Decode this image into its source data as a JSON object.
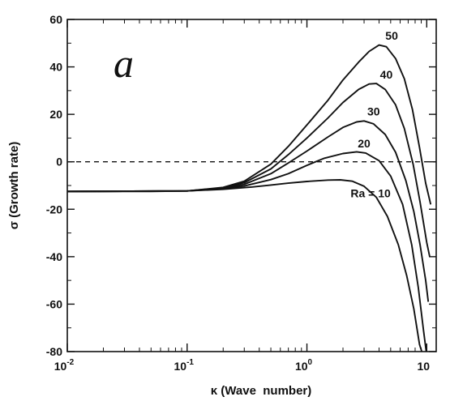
{
  "chart_data": {
    "type": "line",
    "panel_label": "a",
    "xlabel": "κ (Wave  number)",
    "ylabel": "σ (Growth rate)",
    "xscale": "log",
    "xlim": [
      0.01,
      12
    ],
    "ylim": [
      -80,
      60
    ],
    "x_ticks": [
      {
        "value": 0.01,
        "base": "10",
        "exp": "-2"
      },
      {
        "value": 0.1,
        "base": "10",
        "exp": "-1"
      },
      {
        "value": 1,
        "base": "10",
        "exp": "0"
      },
      {
        "value": 10,
        "base": "10",
        "exp": ""
      }
    ],
    "y_ticks": [
      60,
      40,
      20,
      0,
      -20,
      -40,
      -60,
      -80
    ],
    "reference_line": {
      "y": 0,
      "style": "dashed"
    },
    "series": [
      {
        "name": "Ra = 10",
        "points": [
          [
            0.01,
            -12.5
          ],
          [
            0.05,
            -12.5
          ],
          [
            0.1,
            -12.3
          ],
          [
            0.2,
            -11.6
          ],
          [
            0.35,
            -10.6
          ],
          [
            0.5,
            -9.8
          ],
          [
            0.7,
            -9.0
          ],
          [
            1.0,
            -8.3
          ],
          [
            1.5,
            -7.7
          ],
          [
            1.9,
            -7.6
          ],
          [
            2.4,
            -8.2
          ],
          [
            3.0,
            -10.3
          ],
          [
            3.8,
            -15
          ],
          [
            4.7,
            -23
          ],
          [
            5.8,
            -35
          ],
          [
            6.8,
            -48
          ],
          [
            7.8,
            -62
          ],
          [
            8.7,
            -77
          ],
          [
            9.1,
            -83
          ]
        ]
      },
      {
        "name": "20",
        "points": [
          [
            0.01,
            -12.5
          ],
          [
            0.1,
            -12.3
          ],
          [
            0.2,
            -11.4
          ],
          [
            0.3,
            -10.2
          ],
          [
            0.5,
            -7.5
          ],
          [
            0.7,
            -5
          ],
          [
            1.0,
            -1.5
          ],
          [
            1.4,
            1.5
          ],
          [
            2.0,
            3.5
          ],
          [
            2.6,
            4.2
          ],
          [
            3.1,
            3.7
          ],
          [
            4.0,
            0.5
          ],
          [
            5.0,
            -6
          ],
          [
            6.3,
            -18
          ],
          [
            7.5,
            -35
          ],
          [
            8.5,
            -53
          ],
          [
            9.4,
            -71
          ],
          [
            9.9,
            -82
          ]
        ]
      },
      {
        "name": "30",
        "points": [
          [
            0.01,
            -12.5
          ],
          [
            0.1,
            -12.3
          ],
          [
            0.2,
            -11.2
          ],
          [
            0.3,
            -9.5
          ],
          [
            0.5,
            -5
          ],
          [
            0.7,
            -0.5
          ],
          [
            1.0,
            4.5
          ],
          [
            1.5,
            10.5
          ],
          [
            2.0,
            14.5
          ],
          [
            2.6,
            16.8
          ],
          [
            3.0,
            17.2
          ],
          [
            3.6,
            16
          ],
          [
            4.5,
            11.5
          ],
          [
            5.5,
            4
          ],
          [
            6.7,
            -8
          ],
          [
            7.8,
            -21
          ],
          [
            8.8,
            -35
          ],
          [
            9.8,
            -50
          ],
          [
            10.3,
            -59
          ]
        ]
      },
      {
        "name": "40",
        "points": [
          [
            0.01,
            -12.5
          ],
          [
            0.1,
            -12.3
          ],
          [
            0.2,
            -11
          ],
          [
            0.3,
            -8.8
          ],
          [
            0.5,
            -3
          ],
          [
            0.7,
            3
          ],
          [
            1.0,
            10
          ],
          [
            1.5,
            18.5
          ],
          [
            2.0,
            25
          ],
          [
            2.7,
            30.5
          ],
          [
            3.3,
            32.8
          ],
          [
            3.8,
            33
          ],
          [
            4.5,
            30.5
          ],
          [
            5.5,
            24
          ],
          [
            6.5,
            14
          ],
          [
            7.7,
            -1
          ],
          [
            8.8,
            -17
          ],
          [
            10.0,
            -34
          ],
          [
            10.6,
            -40
          ]
        ]
      },
      {
        "name": "50",
        "points": [
          [
            0.01,
            -12.5
          ],
          [
            0.1,
            -12.3
          ],
          [
            0.2,
            -10.8
          ],
          [
            0.3,
            -8.2
          ],
          [
            0.5,
            -1
          ],
          [
            0.7,
            6.5
          ],
          [
            1.0,
            15.5
          ],
          [
            1.5,
            26
          ],
          [
            2.0,
            34.5
          ],
          [
            2.7,
            42
          ],
          [
            3.3,
            46.5
          ],
          [
            4.0,
            49.2
          ],
          [
            4.6,
            48.5
          ],
          [
            5.5,
            43.5
          ],
          [
            6.5,
            35
          ],
          [
            7.6,
            22
          ],
          [
            8.7,
            6
          ],
          [
            9.8,
            -9
          ],
          [
            10.8,
            -18
          ]
        ]
      }
    ],
    "curve_labels": [
      {
        "text": "50",
        "x": 5.1,
        "y": 51.5
      },
      {
        "text": "40",
        "x": 4.6,
        "y": 35
      },
      {
        "text": "30",
        "x": 3.6,
        "y": 19.5
      },
      {
        "text": "20",
        "x": 3.0,
        "y": 6
      },
      {
        "text": "Ra = 10",
        "x": 3.4,
        "y": -15
      }
    ]
  }
}
